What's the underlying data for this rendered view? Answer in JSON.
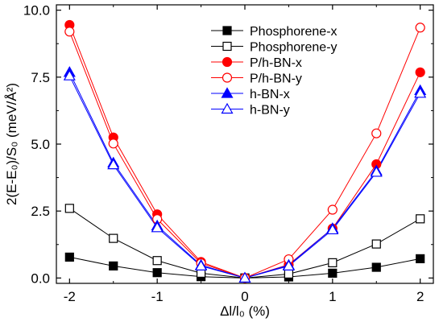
{
  "chart_data": {
    "type": "line",
    "title": "",
    "xlabel": "Δl/l₀ (%)",
    "ylabel": "2(E-E₀)/S₀ (meV/Å²)",
    "xlim": [
      -2.15,
      2.15
    ],
    "ylim": [
      -0.2,
      10.2
    ],
    "x_ticks": [
      -2,
      -1,
      0,
      1,
      2
    ],
    "y_ticks": [
      0.0,
      2.5,
      5.0,
      7.5,
      10.0
    ],
    "y_tick_labels": [
      "0.0",
      "2.5",
      "5.0",
      "7.5",
      "10.0"
    ],
    "grid": false,
    "legend_position": "top-right",
    "x": [
      -2,
      -1.5,
      -1,
      -0.5,
      0,
      0.5,
      1,
      1.5,
      2
    ],
    "series": [
      {
        "name": "Phosphorene-x",
        "color": "#000000",
        "marker": "square",
        "filled": true,
        "values": [
          0.78,
          0.45,
          0.2,
          0.05,
          0.0,
          0.04,
          0.18,
          0.4,
          0.72
        ]
      },
      {
        "name": "Phosphorene-y",
        "color": "#000000",
        "marker": "square",
        "filled": false,
        "values": [
          2.6,
          1.48,
          0.65,
          0.18,
          0.0,
          0.15,
          0.57,
          1.27,
          2.21
        ]
      },
      {
        "name": "P/h-BN-x",
        "color": "#ff0000",
        "marker": "circle",
        "filled": true,
        "values": [
          9.45,
          5.25,
          2.38,
          0.6,
          0.0,
          0.5,
          1.85,
          4.25,
          7.68
        ]
      },
      {
        "name": "P/h-BN-y",
        "color": "#ff0000",
        "marker": "circle",
        "filled": false,
        "values": [
          9.2,
          5.02,
          2.2,
          0.55,
          0.0,
          0.7,
          2.55,
          5.4,
          9.35
        ]
      },
      {
        "name": "h-BN-x",
        "color": "#0000ff",
        "marker": "triangle",
        "filled": true,
        "values": [
          7.68,
          4.3,
          1.95,
          0.48,
          0.0,
          0.48,
          1.85,
          4.0,
          7.0
        ]
      },
      {
        "name": "h-BN-y",
        "color": "#0000ff",
        "marker": "triangle",
        "filled": false,
        "values": [
          7.55,
          4.23,
          1.88,
          0.45,
          0.0,
          0.45,
          1.8,
          3.95,
          6.9
        ]
      }
    ]
  }
}
